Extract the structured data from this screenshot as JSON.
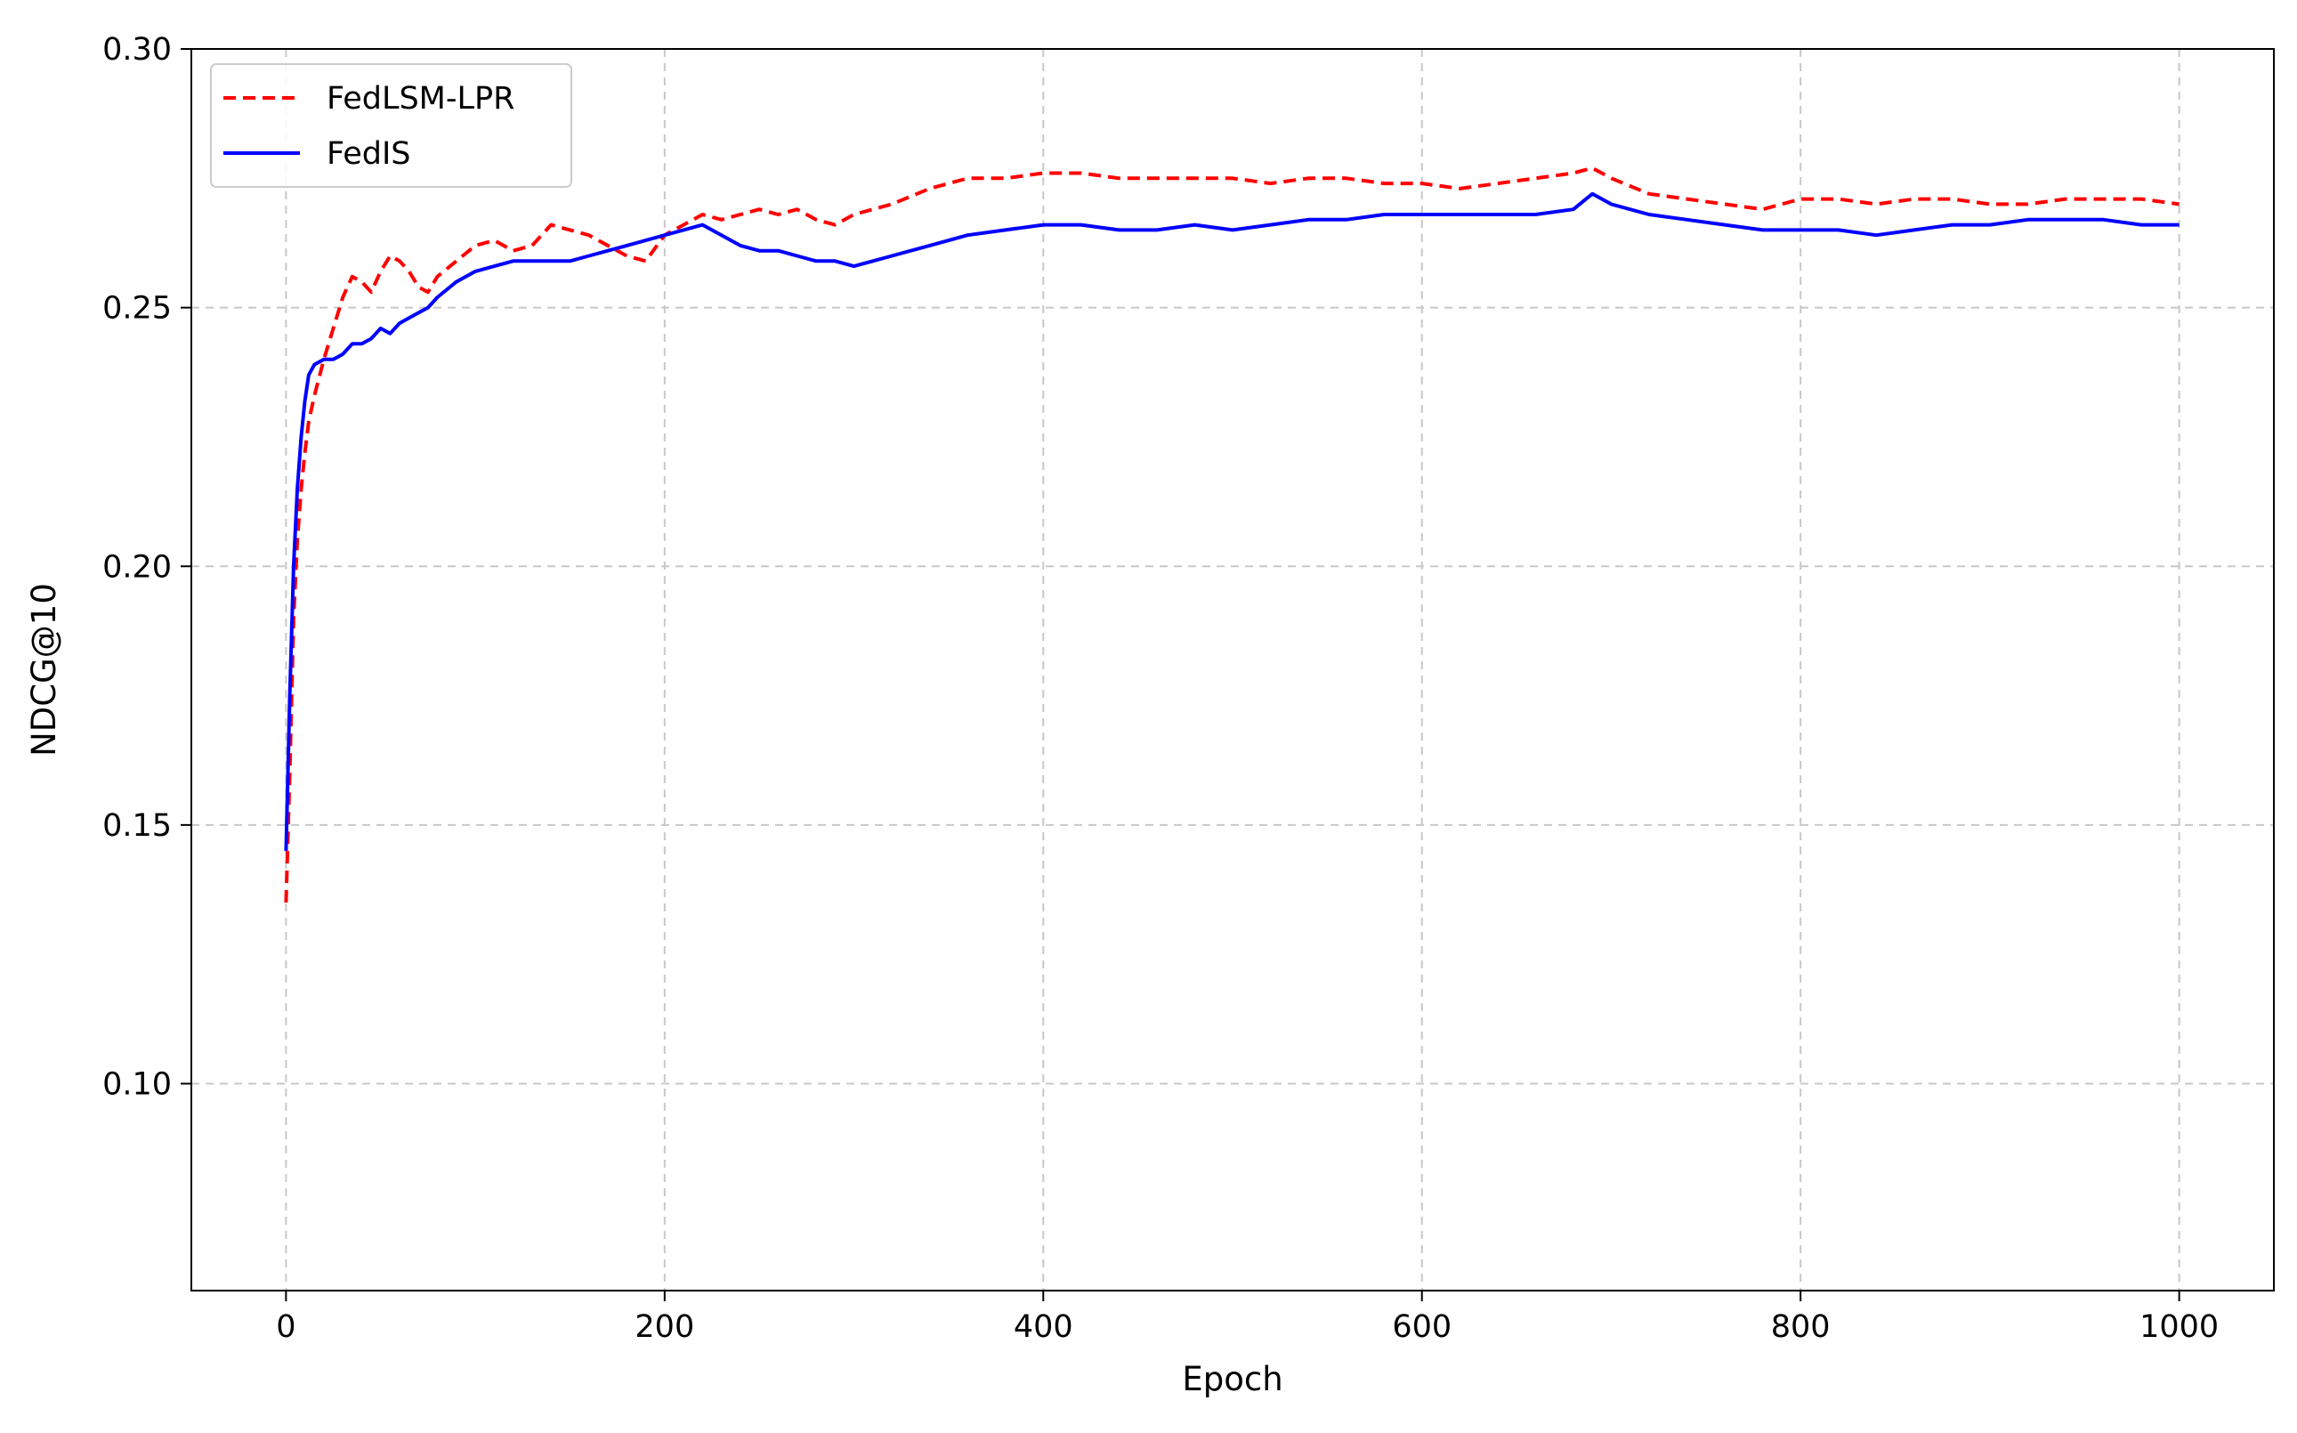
{
  "chart_data": {
    "type": "line",
    "title": "",
    "xlabel": "Epoch",
    "ylabel": "NDCG@10",
    "xlim": [
      -50,
      1050
    ],
    "ylim": [
      0.06,
      0.3
    ],
    "xticks": [
      0,
      200,
      400,
      600,
      800,
      1000
    ],
    "xtick_labels": [
      "0",
      "200",
      "400",
      "600",
      "800",
      "1000"
    ],
    "yticks": [
      0.1,
      0.15,
      0.2,
      0.25,
      0.3
    ],
    "ytick_labels": [
      "0.10",
      "0.15",
      "0.20",
      "0.25",
      "0.30"
    ],
    "grid": true,
    "legend": "upper-left",
    "series": [
      {
        "name": "FedLSM-LPR",
        "color": "#ff0000",
        "style": "dashed",
        "x": [
          0,
          2,
          4,
          6,
          8,
          10,
          12,
          15,
          20,
          25,
          30,
          35,
          40,
          45,
          50,
          55,
          60,
          65,
          70,
          75,
          80,
          90,
          100,
          110,
          120,
          130,
          140,
          150,
          160,
          170,
          180,
          190,
          200,
          210,
          220,
          230,
          240,
          250,
          260,
          270,
          280,
          290,
          300,
          320,
          340,
          360,
          380,
          400,
          420,
          440,
          460,
          480,
          500,
          520,
          540,
          560,
          580,
          600,
          620,
          640,
          660,
          680,
          690,
          700,
          720,
          740,
          760,
          780,
          800,
          820,
          840,
          860,
          880,
          900,
          920,
          940,
          960,
          980,
          1000
        ],
        "y": [
          0.135,
          0.16,
          0.19,
          0.205,
          0.215,
          0.222,
          0.228,
          0.233,
          0.24,
          0.246,
          0.252,
          0.256,
          0.255,
          0.253,
          0.257,
          0.26,
          0.259,
          0.257,
          0.254,
          0.253,
          0.256,
          0.259,
          0.262,
          0.263,
          0.261,
          0.262,
          0.266,
          0.265,
          0.264,
          0.262,
          0.26,
          0.259,
          0.264,
          0.266,
          0.268,
          0.267,
          0.268,
          0.269,
          0.268,
          0.269,
          0.267,
          0.266,
          0.268,
          0.27,
          0.273,
          0.275,
          0.275,
          0.276,
          0.276,
          0.275,
          0.275,
          0.275,
          0.275,
          0.274,
          0.275,
          0.275,
          0.274,
          0.274,
          0.273,
          0.274,
          0.275,
          0.276,
          0.277,
          0.275,
          0.272,
          0.271,
          0.27,
          0.269,
          0.271,
          0.271,
          0.27,
          0.271,
          0.271,
          0.27,
          0.27,
          0.271,
          0.271,
          0.271,
          0.27
        ]
      },
      {
        "name": "FedIS",
        "color": "#0000ff",
        "style": "solid",
        "x": [
          0,
          2,
          4,
          6,
          8,
          10,
          12,
          15,
          20,
          25,
          30,
          35,
          40,
          45,
          50,
          55,
          60,
          65,
          70,
          75,
          80,
          90,
          100,
          110,
          120,
          130,
          140,
          150,
          160,
          170,
          180,
          190,
          200,
          210,
          220,
          230,
          240,
          250,
          260,
          270,
          280,
          290,
          300,
          310,
          320,
          340,
          360,
          380,
          400,
          420,
          440,
          460,
          480,
          500,
          520,
          540,
          560,
          580,
          600,
          620,
          640,
          660,
          680,
          690,
          700,
          720,
          740,
          760,
          780,
          800,
          820,
          840,
          860,
          880,
          900,
          920,
          940,
          960,
          980,
          1000
        ],
        "y": [
          0.145,
          0.175,
          0.2,
          0.215,
          0.225,
          0.232,
          0.237,
          0.239,
          0.24,
          0.24,
          0.241,
          0.243,
          0.243,
          0.244,
          0.246,
          0.245,
          0.247,
          0.248,
          0.249,
          0.25,
          0.252,
          0.255,
          0.257,
          0.258,
          0.259,
          0.259,
          0.259,
          0.259,
          0.26,
          0.261,
          0.262,
          0.263,
          0.264,
          0.265,
          0.266,
          0.264,
          0.262,
          0.261,
          0.261,
          0.26,
          0.259,
          0.259,
          0.258,
          0.259,
          0.26,
          0.262,
          0.264,
          0.265,
          0.266,
          0.266,
          0.265,
          0.265,
          0.266,
          0.265,
          0.266,
          0.267,
          0.267,
          0.268,
          0.268,
          0.268,
          0.268,
          0.268,
          0.269,
          0.272,
          0.27,
          0.268,
          0.267,
          0.266,
          0.265,
          0.265,
          0.265,
          0.264,
          0.265,
          0.266,
          0.266,
          0.267,
          0.267,
          0.267,
          0.266,
          0.266
        ]
      }
    ]
  }
}
